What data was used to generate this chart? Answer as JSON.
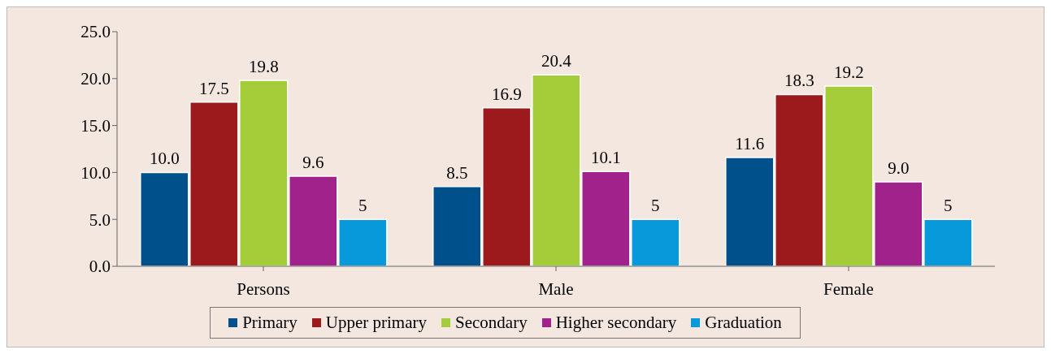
{
  "chart_data": {
    "type": "bar",
    "categories": [
      "Persons",
      "Male",
      "Female"
    ],
    "series": [
      {
        "name": "Primary",
        "color": "#00508c",
        "values": [
          10.0,
          8.5,
          11.6
        ],
        "value_labels": [
          "10.0",
          "8.5",
          "11.6"
        ]
      },
      {
        "name": "Upper primary",
        "color": "#9c1a1c",
        "values": [
          17.5,
          16.9,
          18.3
        ],
        "value_labels": [
          "17.5",
          "16.9",
          "18.3"
        ]
      },
      {
        "name": "Secondary",
        "color": "#a4cd39",
        "values": [
          19.8,
          20.4,
          19.2
        ],
        "value_labels": [
          "19.8",
          "20.4",
          "19.2"
        ]
      },
      {
        "name": "Higher secondary",
        "color": "#a1228b",
        "values": [
          9.6,
          10.1,
          9.0
        ],
        "value_labels": [
          "9.6",
          "10.1",
          "9.0"
        ]
      },
      {
        "name": "Graduation",
        "color": "#0799d9",
        "values": [
          5,
          5,
          5
        ],
        "value_labels": [
          "5",
          "5",
          "5"
        ]
      }
    ],
    "ylim": [
      0,
      25
    ],
    "yticks": [
      {
        "value": 0,
        "label": "0.0"
      },
      {
        "value": 5,
        "label": "5.0"
      },
      {
        "value": 10,
        "label": "10.0"
      },
      {
        "value": 15,
        "label": "15.0"
      },
      {
        "value": 20,
        "label": "20.0"
      },
      {
        "value": 25,
        "label": "25.0"
      }
    ],
    "grid": false,
    "legend": "bottom"
  }
}
